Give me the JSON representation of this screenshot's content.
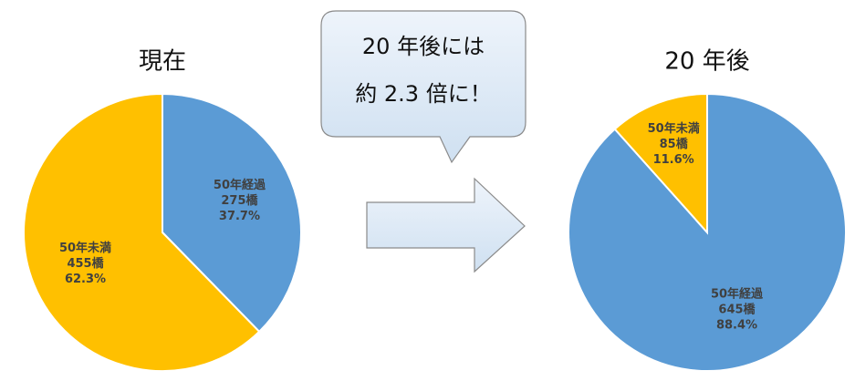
{
  "chart_data": [
    {
      "type": "pie",
      "title": "現在",
      "categories": [
        "50年経過",
        "50年未満"
      ],
      "values": [
        37.7,
        62.3
      ],
      "value_labels": [
        "37.7%",
        "62.3%"
      ],
      "counts": [
        {
          "value": 275,
          "label": "275橋"
        },
        {
          "value": 455,
          "label": "455橋"
        }
      ],
      "colors": [
        "#5b9bd5",
        "#ffc000"
      ]
    },
    {
      "type": "pie",
      "title": "20 年後",
      "categories": [
        "50年経過",
        "50年未満"
      ],
      "values": [
        88.4,
        11.6
      ],
      "value_labels": [
        "88.4%",
        "11.6%"
      ],
      "counts": [
        {
          "value": 645,
          "label": "645橋"
        },
        {
          "value": 85,
          "label": "85橋"
        }
      ],
      "colors": [
        "#5b9bd5",
        "#ffc000"
      ]
    }
  ],
  "callout": {
    "lines": [
      "20 年後には",
      "約 2.3 倍に！"
    ]
  }
}
